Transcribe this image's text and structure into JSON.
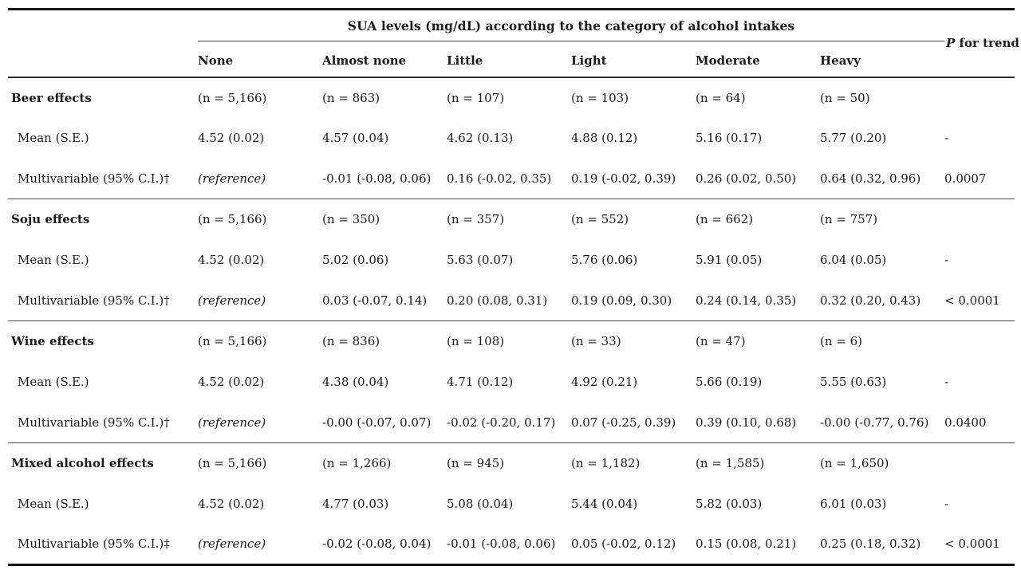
{
  "table": {
    "spanning_header": "SUA levels (mg/dL) according to the category of alcohol intakes",
    "p_trend": {
      "italic_part": "P",
      "rest_part": " for trend"
    },
    "columns": [
      "None",
      "Almost none",
      "Little",
      "Light",
      "Moderate",
      "Heavy"
    ],
    "groups": [
      {
        "label": "Beer effects",
        "n": [
          "(n = 5,166)",
          "(n = 863)",
          "(n = 107)",
          "(n = 103)",
          "(n = 64)",
          "(n = 50)"
        ],
        "mean_label": "Mean (S.E.)",
        "mean": [
          "4.52 (0.02)",
          "4.57 (0.04)",
          "4.62 (0.13)",
          "4.88 (0.12)",
          "5.16 (0.17)",
          "5.77 (0.20)"
        ],
        "mean_p": "-",
        "multi_label": "Multivariable (95% C.I.)†",
        "multi": [
          "(reference)",
          "-0.01 (-0.08, 0.06)",
          "0.16 (-0.02, 0.35)",
          "0.19 (-0.02, 0.39)",
          "0.26 (0.02, 0.50)",
          "0.64 (0.32, 0.96)"
        ],
        "multi_p": "0.0007"
      },
      {
        "label": "Soju effects",
        "n": [
          "(n = 5,166)",
          "(n = 350)",
          "(n = 357)",
          "(n = 552)",
          "(n = 662)",
          "(n = 757)"
        ],
        "mean_label": "Mean (S.E.)",
        "mean": [
          "4.52 (0.02)",
          "5.02 (0.06)",
          "5.63 (0.07)",
          "5.76 (0.06)",
          "5.91 (0.05)",
          "6.04 (0.05)"
        ],
        "mean_p": "-",
        "multi_label": "Multivariable (95% C.I.)†",
        "multi": [
          "(reference)",
          "0.03 (-0.07, 0.14)",
          "0.20 (0.08, 0.31)",
          "0.19 (0.09, 0.30)",
          "0.24 (0.14, 0.35)",
          "0.32 (0.20, 0.43)"
        ],
        "multi_p": "< 0.0001"
      },
      {
        "label": "Wine effects",
        "n": [
          "(n = 5,166)",
          "(n = 836)",
          "(n = 108)",
          "(n = 33)",
          "(n = 47)",
          "(n = 6)"
        ],
        "mean_label": "Mean (S.E.)",
        "mean": [
          "4.52 (0.02)",
          "4.38 (0.04)",
          "4.71 (0.12)",
          "4.92 (0.21)",
          "5.66 (0.19)",
          "5.55 (0.63)"
        ],
        "mean_p": "-",
        "multi_label": "Multivariable (95% C.I.)†",
        "multi": [
          "(reference)",
          "-0.00 (-0.07, 0.07)",
          "-0.02 (-0.20, 0.17)",
          "0.07 (-0.25, 0.39)",
          "0.39 (0.10, 0.68)",
          "-0.00 (-0.77, 0.76)"
        ],
        "multi_p": "0.0400"
      },
      {
        "label": "Mixed alcohol effects",
        "n": [
          "(n = 5,166)",
          "(n = 1,266)",
          "(n = 945)",
          "(n = 1,182)",
          "(n = 1,585)",
          "(n = 1,650)"
        ],
        "mean_label": "Mean (S.E.)",
        "mean": [
          "4.52 (0.02)",
          "4.77 (0.03)",
          "5.08 (0.04)",
          "5.44 (0.04)",
          "5.82 (0.03)",
          "6.01 (0.03)"
        ],
        "mean_p": "-",
        "multi_label": "Multivariable (95% C.I.)‡",
        "multi": [
          "(reference)",
          "-0.02 (-0.08, 0.04)",
          "-0.01 (-0.08, 0.06)",
          "0.05 (-0.02, 0.12)",
          "0.15 (0.08, 0.21)",
          "0.25 (0.18, 0.32)"
        ],
        "multi_p": "< 0.0001"
      }
    ]
  }
}
